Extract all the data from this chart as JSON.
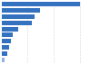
{
  "values": [
    9900,
    4900,
    4200,
    3800,
    2100,
    1400,
    1100,
    900,
    700,
    300
  ],
  "bar_color": "#3472c0",
  "last_bar_color": "#8fb4e0",
  "background_color": "#ffffff",
  "grid_color": "#d0d0d0",
  "figsize": [
    1.0,
    0.71
  ],
  "dpi": 100,
  "bar_height": 0.75
}
